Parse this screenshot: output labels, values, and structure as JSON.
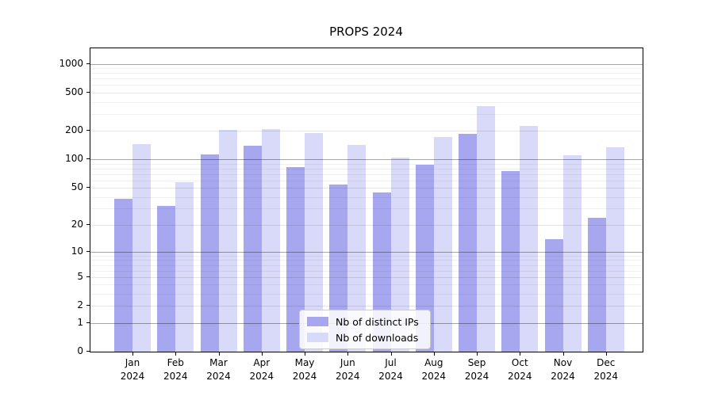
{
  "title": "PROPS 2024",
  "colors": {
    "background": "#ffffff",
    "axis": "#000000",
    "distinct_ips": "#a7a7f0",
    "downloads": "#d9d9f9",
    "major_grid": "#a9a9a9",
    "minor_grid": "#eeeeee"
  },
  "legend": {
    "items": [
      {
        "label": "Nb of distinct IPs",
        "color": "#a7a7f0"
      },
      {
        "label": "Nb of downloads",
        "color": "#d9d9f9"
      }
    ]
  },
  "chart_data": {
    "type": "bar",
    "title": "PROPS 2024",
    "xlabel": "",
    "ylabel": "",
    "grid": true,
    "legend_position": "lower center (inside plot)",
    "yscale": "symlog (log10(1+v))",
    "ylim": [
      0,
      1450
    ],
    "categories": [
      [
        "Jan",
        "2024"
      ],
      [
        "Feb",
        "2024"
      ],
      [
        "Mar",
        "2024"
      ],
      [
        "Apr",
        "2024"
      ],
      [
        "May",
        "2024"
      ],
      [
        "Jun",
        "2024"
      ],
      [
        "Jul",
        "2024"
      ],
      [
        "Aug",
        "2024"
      ],
      [
        "Sep",
        "2024"
      ],
      [
        "Oct",
        "2024"
      ],
      [
        "Nov",
        "2024"
      ],
      [
        "Dec",
        "2024"
      ]
    ],
    "series": [
      {
        "name": "Nb of distinct IPs",
        "color": "#a7a7f0",
        "values": [
          38,
          32,
          112,
          140,
          83,
          54,
          45,
          88,
          185,
          75,
          14,
          24
        ]
      },
      {
        "name": "Nb of downloads",
        "color": "#d9d9f9",
        "values": [
          145,
          57,
          203,
          208,
          190,
          143,
          105,
          172,
          360,
          225,
          110,
          135
        ]
      }
    ],
    "yticks": [
      {
        "value": 0,
        "label": "0"
      },
      {
        "value": 1,
        "label": "1"
      },
      {
        "value": 2,
        "label": "2"
      },
      {
        "value": 5,
        "label": "5"
      },
      {
        "value": 10,
        "label": "10"
      },
      {
        "value": 20,
        "label": "20"
      },
      {
        "value": 50,
        "label": "50"
      },
      {
        "value": 100,
        "label": "100"
      },
      {
        "value": 200,
        "label": "200"
      },
      {
        "value": 500,
        "label": "500"
      },
      {
        "value": 1000,
        "label": "1000"
      }
    ],
    "major_grid_values": [
      1,
      10,
      100,
      1000
    ],
    "minor_grid_values": [
      3,
      4,
      6,
      7,
      8,
      9,
      30,
      40,
      60,
      70,
      80,
      90,
      300,
      400,
      600,
      700,
      800,
      900
    ]
  }
}
